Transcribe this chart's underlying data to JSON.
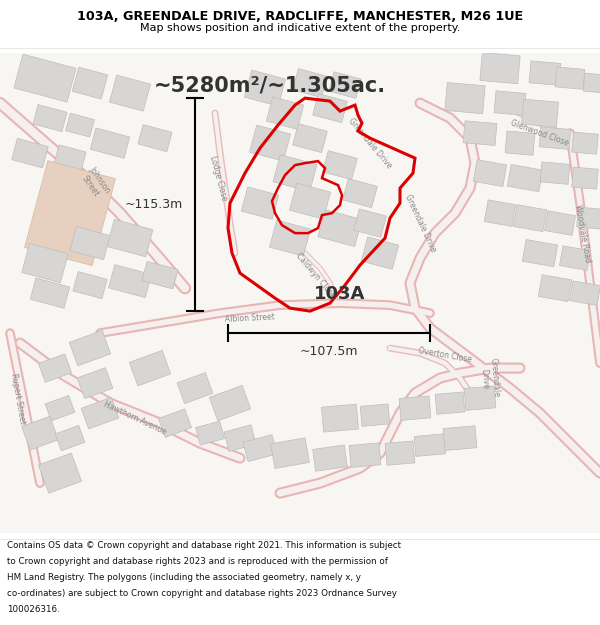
{
  "title_line1": "103A, GREENDALE DRIVE, RADCLIFFE, MANCHESTER, M26 1UE",
  "title_line2": "Map shows position and indicative extent of the property.",
  "area_text": "~5280m²/~1.305ac.",
  "label_103a": "103A",
  "dim_height": "~115.3m",
  "dim_width": "~107.5m",
  "footer_text": "Contains OS data © Crown copyright and database right 2021. This information is subject to Crown copyright and database rights 2023 and is reproduced with the permission of HM Land Registry. The polygons (including the associated geometry, namely x, y co-ordinates) are subject to Crown copyright and database rights 2023 Ordnance Survey 100026316.",
  "map_bg": "#f7f5f2",
  "road_outline_color": "#e8b4b4",
  "road_fill_color": "#f5f0ee",
  "building_color": "#d8d6d4",
  "building_edge": "#c0bcb8",
  "pink_building_color": "#e8d0c0",
  "pink_building_edge": "#d4b8a0",
  "red_color": "#dd0000",
  "white_bg": "#ffffff",
  "text_color": "#333333",
  "road_label_color": "#888888"
}
